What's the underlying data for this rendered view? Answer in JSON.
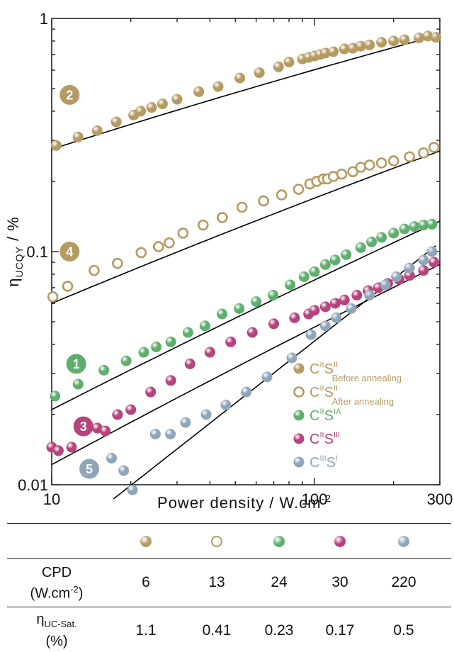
{
  "chart_data": {
    "type": "scatter",
    "xscale": "log",
    "yscale": "log",
    "xlim": [
      10,
      300
    ],
    "ylim": [
      0.01,
      1
    ],
    "xlabel": "Power density / W.cm",
    "xlabel_sup": "-2",
    "ylabel_main": "η",
    "ylabel_sub": "UCQY",
    "ylabel_unit": " / %",
    "xticks": [
      {
        "v": 10,
        "label": "10"
      },
      {
        "v": 100,
        "label": "100"
      },
      {
        "v": 300,
        "label": "300"
      }
    ],
    "yticks": [
      {
        "v": 0.01,
        "label": "0.01"
      },
      {
        "v": 0.1,
        "label": "0.1"
      },
      {
        "v": 1,
        "label": "1"
      }
    ],
    "legend_position": "bottom-right",
    "series": [
      {
        "id": "s2",
        "badge": "2",
        "badge_x": 11.7,
        "badge_y": 0.47,
        "filled": true,
        "color": "#b59a62",
        "legend": {
          "base1": "C",
          "sup1": "II",
          "base2": "S",
          "sup2": "II",
          "sub2": "Before annealing"
        },
        "x": [
          10.4,
          12.6,
          14.9,
          17.6,
          20.5,
          21.8,
          24,
          26.4,
          30,
          36.3,
          43,
          52,
          61.7,
          73,
          80,
          90,
          95,
          100,
          105,
          110,
          118,
          130,
          140,
          150,
          162,
          180,
          200,
          220,
          250,
          270,
          290
        ],
        "y": [
          0.285,
          0.31,
          0.33,
          0.36,
          0.385,
          0.4,
          0.415,
          0.43,
          0.45,
          0.485,
          0.51,
          0.555,
          0.585,
          0.62,
          0.65,
          0.67,
          0.68,
          0.69,
          0.7,
          0.71,
          0.72,
          0.74,
          0.745,
          0.76,
          0.77,
          0.79,
          0.8,
          0.81,
          0.825,
          0.84,
          0.83
        ],
        "fit_y0": 0.275,
        "fit_y1": 0.85
      },
      {
        "id": "s4",
        "badge": "4",
        "badge_x": 11.7,
        "badge_y": 0.1,
        "filled": false,
        "color": "#b59a62",
        "legend": {
          "base1": "C",
          "sup1": "II",
          "base2": "S",
          "sup2": "II",
          "sub2": "After annealing"
        },
        "x": [
          10.1,
          11.5,
          14.5,
          17.8,
          21.9,
          25.5,
          28,
          31.6,
          37.7,
          44.6,
          53,
          64,
          75,
          87,
          96,
          102,
          108,
          112,
          118,
          127,
          140,
          150,
          162,
          180,
          200,
          230,
          260,
          285
        ],
        "y": [
          0.064,
          0.071,
          0.083,
          0.089,
          0.099,
          0.105,
          0.109,
          0.12,
          0.13,
          0.14,
          0.155,
          0.165,
          0.175,
          0.185,
          0.195,
          0.2,
          0.205,
          0.205,
          0.21,
          0.215,
          0.22,
          0.23,
          0.235,
          0.24,
          0.245,
          0.255,
          0.265,
          0.28
        ],
        "fit_y0": 0.06,
        "fit_y1": 0.27
      },
      {
        "id": "s1",
        "badge": "1",
        "badge_x": 12.4,
        "badge_y": 0.033,
        "filled": true,
        "color": "#5fae6e",
        "legend": {
          "base1": "C",
          "sup1": "II",
          "base2": "S",
          "sup2": "IA"
        },
        "x": [
          10.3,
          12.6,
          15.8,
          19.2,
          22.4,
          25,
          28.4,
          33,
          38.3,
          44.5,
          51.7,
          60,
          69.6,
          80.8,
          91.3,
          100,
          110,
          119.8,
          132,
          150,
          165,
          180,
          200,
          220,
          240,
          260,
          280
        ],
        "y": [
          0.024,
          0.027,
          0.031,
          0.034,
          0.037,
          0.039,
          0.041,
          0.045,
          0.048,
          0.054,
          0.057,
          0.061,
          0.065,
          0.072,
          0.078,
          0.082,
          0.088,
          0.092,
          0.097,
          0.104,
          0.11,
          0.115,
          0.12,
          0.125,
          0.128,
          0.13,
          0.131
        ],
        "fit_y0": 0.021,
        "fit_y1": 0.135
      },
      {
        "id": "s3",
        "badge": "3",
        "badge_x": 13.2,
        "badge_y": 0.0178,
        "filled": true,
        "color": "#b6437c",
        "legend": {
          "base1": "C",
          "sup1": "II",
          "base2": "S",
          "sup2": "III"
        },
        "x": [
          10,
          10.6,
          11.9,
          14.9,
          16,
          17.8,
          20,
          23.8,
          28.4,
          33.6,
          40,
          48,
          58,
          70,
          84,
          95,
          100,
          110,
          120,
          130,
          145,
          160,
          175,
          190,
          210,
          230,
          260,
          285
        ],
        "y": [
          0.0145,
          0.014,
          0.0145,
          0.0175,
          0.017,
          0.02,
          0.021,
          0.025,
          0.028,
          0.033,
          0.037,
          0.041,
          0.045,
          0.049,
          0.052,
          0.054,
          0.056,
          0.058,
          0.06,
          0.062,
          0.065,
          0.068,
          0.07,
          0.073,
          0.076,
          0.079,
          0.083,
          0.09
        ],
        "fit_y0": 0.0122,
        "fit_y1": 0.088
      },
      {
        "id": "s5",
        "badge": "5",
        "badge_x": 13.9,
        "badge_y": 0.0117,
        "filled": true,
        "color": "#8fa6ba",
        "legend": {
          "base1": "C",
          "sup1": "III",
          "base2": "S",
          "sup2": "I"
        },
        "x": [
          16.9,
          18.8,
          20.3,
          24.8,
          28.3,
          32.3,
          38.7,
          46,
          55,
          66,
          82,
          97,
          110,
          121,
          138,
          162,
          186,
          205,
          230,
          260,
          280
        ],
        "y": [
          0.013,
          0.0115,
          0.0095,
          0.0165,
          0.0165,
          0.0185,
          0.02,
          0.022,
          0.025,
          0.029,
          0.035,
          0.044,
          0.048,
          0.052,
          0.057,
          0.065,
          0.072,
          0.078,
          0.085,
          0.092,
          0.1
        ],
        "fit_x0": 17.2,
        "fit_y0": 0.0087,
        "fit_x1": 290,
        "fit_y1": 0.106
      }
    ]
  },
  "table": {
    "cpd_label_line1": "CPD",
    "cpd_label_line2": "(W.cm",
    "cpd_label_sup": "-2",
    "cpd_label_close": ")",
    "eta_label_main": "η",
    "eta_label_sub": "UC-Sat.",
    "eta_label_unit": "(%)",
    "symbols": [
      {
        "filled": true,
        "color": "#b59a62"
      },
      {
        "filled": false,
        "color": "#b59a62"
      },
      {
        "filled": true,
        "color": "#5fae6e"
      },
      {
        "filled": true,
        "color": "#b6437c"
      },
      {
        "filled": true,
        "color": "#8fa6ba"
      }
    ],
    "cpd_values": [
      "6",
      "13",
      "24",
      "30",
      "220"
    ],
    "eta_values": [
      "1.1",
      "0.41",
      "0.23",
      "0.17",
      "0.5"
    ]
  }
}
